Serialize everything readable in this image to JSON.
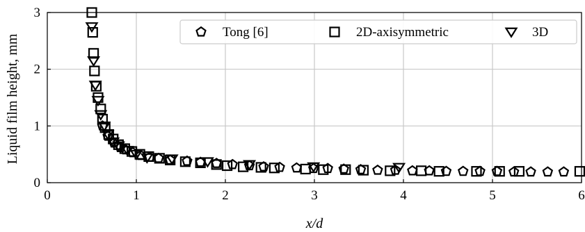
{
  "chart_data": {
    "type": "scatter",
    "xlabel": "x/d",
    "ylabel": "Liquid film height, mm",
    "xlim": [
      0,
      6
    ],
    "ylim": [
      0,
      3
    ],
    "xticks": [
      "0",
      "1",
      "2",
      "3",
      "4",
      "5",
      "6"
    ],
    "yticks": [
      "0",
      "1",
      "2",
      "3"
    ],
    "grid": true,
    "legend_position": "top-right",
    "series": [
      {
        "name": "Tong [6]",
        "marker": "pentagon",
        "x": [
          0.62,
          0.68,
          0.75,
          0.82,
          0.88,
          0.96,
          1.05,
          1.15,
          1.25,
          1.38,
          1.57,
          1.72,
          1.9,
          2.08,
          2.27,
          2.43,
          2.61,
          2.8,
          2.99,
          3.15,
          3.33,
          3.52,
          3.71,
          3.91,
          4.1,
          4.29,
          4.48,
          4.67,
          4.86,
          5.05,
          5.24,
          5.43,
          5.62,
          5.8
        ],
        "y": [
          1.0,
          0.82,
          0.7,
          0.62,
          0.58,
          0.53,
          0.48,
          0.45,
          0.43,
          0.4,
          0.38,
          0.36,
          0.34,
          0.32,
          0.3,
          0.28,
          0.27,
          0.26,
          0.25,
          0.25,
          0.24,
          0.23,
          0.22,
          0.22,
          0.21,
          0.21,
          0.2,
          0.2,
          0.2,
          0.2,
          0.19,
          0.19,
          0.19,
          0.19
        ]
      },
      {
        "name": "2D-axisymmetric",
        "marker": "square",
        "x": [
          0.5,
          0.51,
          0.52,
          0.53,
          0.55,
          0.57,
          0.6,
          0.62,
          0.65,
          0.69,
          0.74,
          0.8,
          0.87,
          0.95,
          1.04,
          1.14,
          1.26,
          1.38,
          1.55,
          1.72,
          1.9,
          2.02,
          2.2,
          2.4,
          2.55,
          2.9,
          3.1,
          3.35,
          3.55,
          3.85,
          4.2,
          4.4,
          4.82,
          5.08,
          5.3,
          5.98
        ],
        "y": [
          3.0,
          2.65,
          2.28,
          1.97,
          1.7,
          1.5,
          1.3,
          1.12,
          0.97,
          0.85,
          0.77,
          0.67,
          0.6,
          0.55,
          0.5,
          0.46,
          0.43,
          0.4,
          0.37,
          0.35,
          0.32,
          0.3,
          0.28,
          0.27,
          0.26,
          0.24,
          0.23,
          0.23,
          0.22,
          0.21,
          0.21,
          0.2,
          0.2,
          0.2,
          0.2,
          0.2
        ]
      },
      {
        "name": "3D",
        "marker": "triangle-down",
        "x": [
          0.5,
          0.52,
          0.54,
          0.57,
          0.6,
          0.64,
          0.68,
          0.74,
          0.8,
          0.9,
          1.0,
          1.12,
          1.4,
          1.8,
          2.27,
          2.99,
          3.95
        ],
        "y": [
          2.75,
          2.15,
          1.72,
          1.45,
          1.2,
          1.0,
          0.85,
          0.72,
          0.65,
          0.57,
          0.5,
          0.44,
          0.42,
          0.37,
          0.32,
          0.28,
          0.27
        ]
      }
    ]
  }
}
